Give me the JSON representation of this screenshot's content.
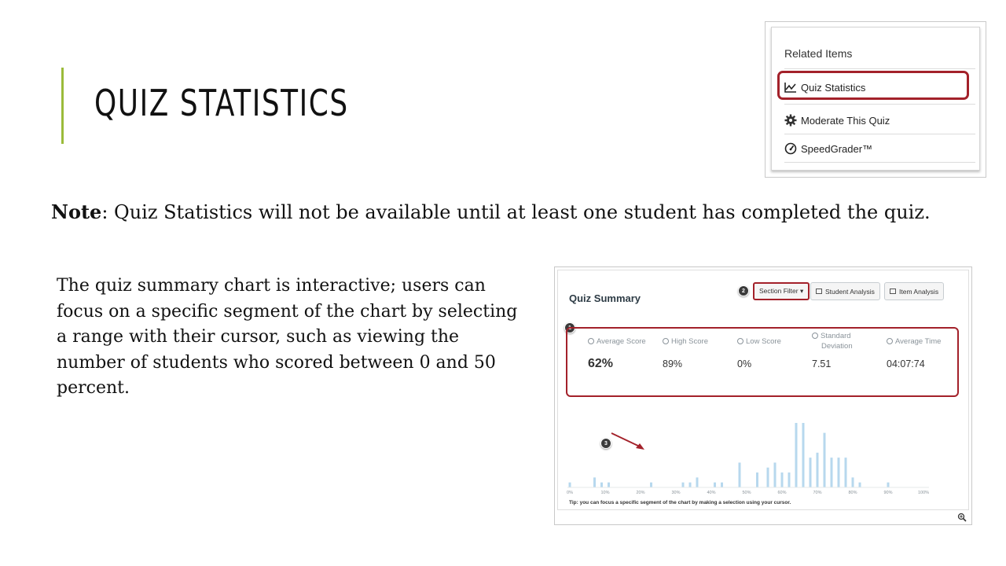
{
  "slide": {
    "title": "QUIZ STATISTICS",
    "note_label": "Note",
    "note_text": ": Quiz Statistics will not be available until at least one student has completed the quiz.",
    "description": "The quiz summary chart is interactive; users can focus on a specific segment of the chart by selecting a range with their cursor, such as viewing the number of students who scored between 0 and 50 percent.",
    "accent_color": "#9bbb3a"
  },
  "related_items": {
    "heading": "Related Items",
    "items": [
      {
        "label": "Quiz Statistics",
        "icon": "line-chart-icon",
        "highlighted": true
      },
      {
        "label": "Moderate This Quiz",
        "icon": "gear-icon"
      },
      {
        "label": "SpeedGrader™",
        "icon": "speedometer-icon"
      }
    ],
    "highlight_color": "#a3212a"
  },
  "quiz_summary": {
    "title": "Quiz Summary",
    "buttons": {
      "section_filter": "Section Filter ▾",
      "student_analysis": "Student Analysis",
      "item_analysis": "Item Analysis"
    },
    "badges": [
      "1",
      "2",
      "3"
    ],
    "stats": [
      {
        "label": "Average Score",
        "value": "62%"
      },
      {
        "label": "High Score",
        "value": "89%"
      },
      {
        "label": "Low Score",
        "value": "0%"
      },
      {
        "label": "Standard",
        "label2": "Deviation",
        "value": "7.51"
      },
      {
        "label": "Average Time",
        "value": "04:07:74"
      }
    ],
    "tip": "Tip: you can focus a specific segment of the chart by making a selection using your cursor.",
    "bar_color": "#b7d8ee"
  },
  "chart_data": {
    "type": "bar",
    "xlabel": "",
    "ylabel": "",
    "x_range": [
      0,
      100
    ],
    "x_ticks": [
      "0%",
      "10%",
      "20%",
      "30%",
      "40%",
      "50%",
      "60%",
      "70%",
      "80%",
      "90%",
      "100%"
    ],
    "bars": [
      {
        "x": 0,
        "v": 1
      },
      {
        "x": 7,
        "v": 2
      },
      {
        "x": 9,
        "v": 1
      },
      {
        "x": 11,
        "v": 1
      },
      {
        "x": 23,
        "v": 1
      },
      {
        "x": 32,
        "v": 1
      },
      {
        "x": 34,
        "v": 1
      },
      {
        "x": 36,
        "v": 2
      },
      {
        "x": 41,
        "v": 1
      },
      {
        "x": 43,
        "v": 1
      },
      {
        "x": 48,
        "v": 5
      },
      {
        "x": 53,
        "v": 3
      },
      {
        "x": 56,
        "v": 4
      },
      {
        "x": 58,
        "v": 5
      },
      {
        "x": 60,
        "v": 3
      },
      {
        "x": 62,
        "v": 3
      },
      {
        "x": 64,
        "v": 13
      },
      {
        "x": 66,
        "v": 13
      },
      {
        "x": 68,
        "v": 6
      },
      {
        "x": 70,
        "v": 7
      },
      {
        "x": 72,
        "v": 11
      },
      {
        "x": 74,
        "v": 6
      },
      {
        "x": 76,
        "v": 6
      },
      {
        "x": 78,
        "v": 6
      },
      {
        "x": 80,
        "v": 2
      },
      {
        "x": 82,
        "v": 1
      },
      {
        "x": 90,
        "v": 1
      }
    ],
    "y_max": 13,
    "grid": false
  }
}
